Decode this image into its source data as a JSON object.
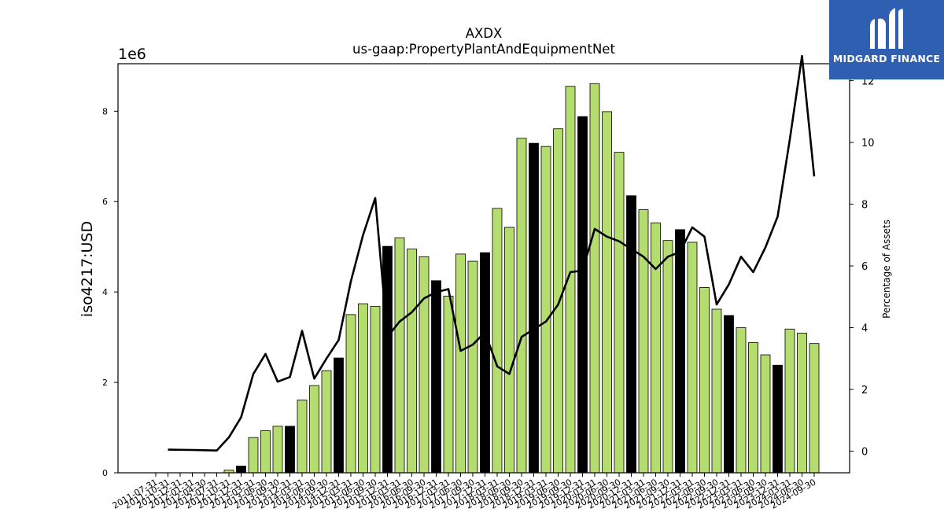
{
  "chart_data": {
    "type": "bar",
    "title": "AXDX",
    "subtitle": "us-gaap:PropertyPlantAndEquipmentNet",
    "ylabel": "iso4217:USD",
    "y_offset_label": "1e6",
    "y2label": "Percentage of Assets",
    "ylim": [
      0,
      9050000
    ],
    "y2lim": [
      -0.7,
      12.55
    ],
    "yticks": [
      0,
      2,
      4,
      6,
      8
    ],
    "y2ticks": [
      0,
      2,
      4,
      6,
      8,
      10,
      12
    ],
    "grid": false,
    "legend": "none",
    "colors": {
      "quarter_bar": "#b5dc6e",
      "year_end_bar": "#000000",
      "line": "#000000",
      "edge": "#000000"
    },
    "categories": [
      "2011-07-31",
      "2011-10-31",
      "2011-12-31",
      "2012-01-31",
      "2012-04-30",
      "2012-07-31",
      "2012-10-31",
      "2012-12-31",
      "2013-03-31",
      "2013-06-30",
      "2013-09-30",
      "2013-12-31",
      "2014-03-31",
      "2014-06-30",
      "2014-09-30",
      "2014-12-31",
      "2015-03-31",
      "2015-06-30",
      "2015-09-30",
      "2015-12-31",
      "2016-03-31",
      "2016-06-30",
      "2016-09-30",
      "2016-12-31",
      "2017-03-31",
      "2017-06-30",
      "2017-09-30",
      "2017-12-31",
      "2018-03-31",
      "2018-06-30",
      "2018-09-30",
      "2018-12-31",
      "2019-03-31",
      "2019-06-30",
      "2019-09-30",
      "2019-12-31",
      "2020-03-31",
      "2020-06-30",
      "2020-09-30",
      "2020-12-31",
      "2021-03-31",
      "2021-06-30",
      "2021-09-30",
      "2021-12-31",
      "2022-03-31",
      "2022-06-30",
      "2022-09-30",
      "2022-12-31",
      "2023-03-31",
      "2023-06-30",
      "2023-09-30",
      "2023-12-31",
      "2024-03-31",
      "2024-06-30",
      "2024-09-30"
    ],
    "series": [
      {
        "type": "bar",
        "values": [
          0,
          0,
          0,
          0,
          0,
          0,
          60000,
          150000,
          780000,
          930000,
          1030000,
          1030000,
          1610000,
          1930000,
          2260000,
          2540000,
          3500000,
          3740000,
          3680000,
          5010000,
          5200000,
          4950000,
          4780000,
          4250000,
          3910000,
          4840000,
          4680000,
          4870000,
          5850000,
          5430000,
          7400000,
          7290000,
          7220000,
          7610000,
          8550000,
          7880000,
          8610000,
          7990000,
          7090000,
          6130000,
          5820000,
          5530000,
          5140000,
          5380000,
          5100000,
          4100000,
          3620000,
          3480000,
          3210000,
          2880000,
          2610000,
          2380000,
          3180000,
          3090000,
          2860000
        ],
        "year_end": [
          false,
          false,
          false,
          false,
          false,
          false,
          false,
          true,
          false,
          false,
          false,
          true,
          false,
          false,
          false,
          true,
          false,
          false,
          false,
          true,
          false,
          false,
          false,
          true,
          false,
          false,
          false,
          true,
          false,
          false,
          false,
          true,
          false,
          false,
          false,
          true,
          false,
          false,
          false,
          true,
          false,
          false,
          false,
          true,
          false,
          false,
          false,
          true,
          false,
          false,
          false,
          true,
          false,
          false,
          false
        ]
      },
      {
        "type": "line",
        "axis": "right",
        "values": [
          null,
          0.05,
          null,
          0.04,
          null,
          0.02,
          0.45,
          1.1,
          2.5,
          3.15,
          2.25,
          2.4,
          3.9,
          2.35,
          3.0,
          3.6,
          5.5,
          7.0,
          8.2,
          3.7,
          4.2,
          4.5,
          4.95,
          5.15,
          5.25,
          3.25,
          3.45,
          3.85,
          2.75,
          2.5,
          3.7,
          3.95,
          4.2,
          4.75,
          5.8,
          5.85,
          7.2,
          6.95,
          6.8,
          6.55,
          6.3,
          5.9,
          6.3,
          6.45,
          7.25,
          6.95,
          4.75,
          5.4,
          6.3,
          5.8,
          6.6,
          7.6,
          10.1,
          12.8,
          8.9
        ]
      }
    ]
  },
  "logo": {
    "text": "MIDGARD FINANCE"
  }
}
